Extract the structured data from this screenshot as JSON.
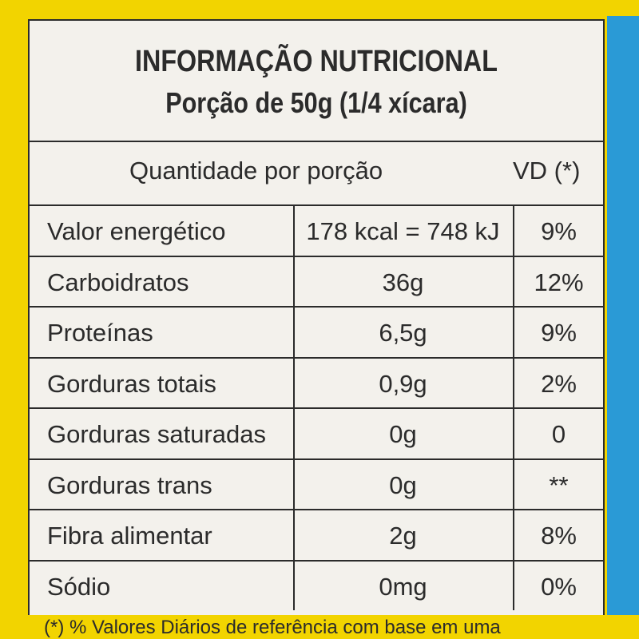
{
  "header": {
    "title": "INFORMAÇÃO NUTRICIONAL",
    "serving": "Porção de 50g (1/4 xícara)"
  },
  "table": {
    "header": [
      "Quantidade por porção",
      "VD (*)"
    ],
    "rows": [
      [
        "Valor energético",
        "178 kcal = 748 kJ",
        "9%"
      ],
      [
        "Carboidratos",
        "36g",
        "12%"
      ],
      [
        "Proteínas",
        "6,5g",
        "9%"
      ],
      [
        "Gorduras totais",
        "0,9g",
        "2%"
      ],
      [
        "Gorduras saturadas",
        "0g",
        "0"
      ],
      [
        "Gorduras trans",
        "0g",
        "**"
      ],
      [
        "Fibra alimentar",
        "2g",
        "8%"
      ],
      [
        "Sódio",
        "0mg",
        "0%"
      ]
    ]
  },
  "footnote": "(*) % Valores Diários de referência com base em uma"
}
